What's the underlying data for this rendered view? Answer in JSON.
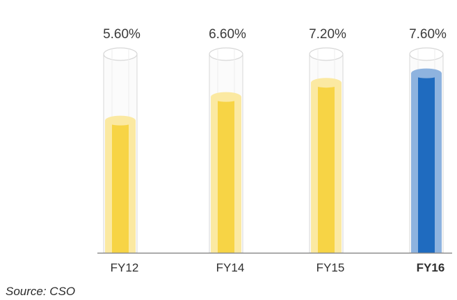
{
  "chart_data": {
    "type": "bar",
    "categories": [
      "FY12",
      "FY14",
      "FY15",
      "FY16"
    ],
    "values": [
      5.6,
      6.6,
      7.2,
      7.6
    ],
    "value_labels": [
      "5.60%",
      "6.60%",
      "7.20%",
      "7.60%"
    ],
    "highlight_category": "FY16",
    "ylim": [
      0,
      8.5
    ],
    "grid": false,
    "legend": "none",
    "colors": {
      "default_fill": "#f7d445",
      "default_fill_light": "#fbe9a2",
      "highlight_fill": "#1f6bbf",
      "highlight_fill_light": "#8eb3df",
      "tube_outline": "#d7d7d7",
      "axis": "#8c8c8c"
    }
  },
  "source": "Source: CSO"
}
